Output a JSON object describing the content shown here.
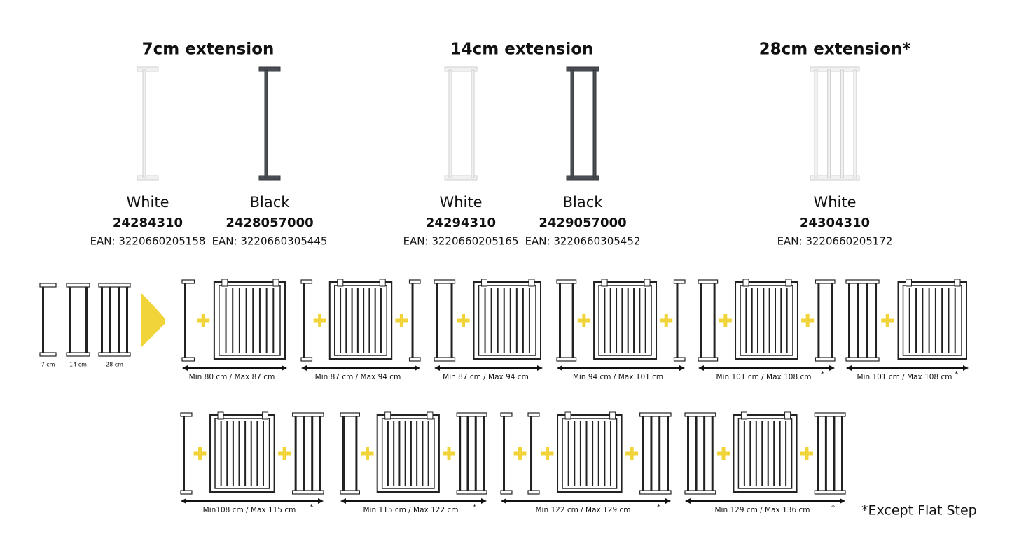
{
  "products": [
    {
      "title": "7cm extension",
      "variants": [
        {
          "color": "White",
          "code": "24284310",
          "ean": "EAN: 3220660205158"
        },
        {
          "color": "Black",
          "code": "2428057000",
          "ean": "EAN: 3220660305445"
        }
      ]
    },
    {
      "title": "14cm extension",
      "variants": [
        {
          "color": "White",
          "code": "24294310",
          "ean": "EAN: 3220660205165"
        },
        {
          "color": "Black",
          "code": "2429057000",
          "ean": "EAN: 3220660305452"
        }
      ]
    },
    {
      "title": "28cm extension*",
      "variants": [
        {
          "color": "White",
          "code": "24304310",
          "ean": "EAN: 3220660205172"
        }
      ]
    }
  ],
  "legend": [
    "7 cm",
    "14 cm",
    "28 cm"
  ],
  "configurations": [
    {
      "range": "Min 80 cm / Max 87 cm"
    },
    {
      "range": "Min 87 cm / Max 94 cm"
    },
    {
      "range": "Min 87 cm / Max 94 cm"
    },
    {
      "range": "Min 94 cm / Max 101 cm"
    },
    {
      "range": "Min 101 cm / Max 108 cm",
      "note": "*"
    },
    {
      "range": "Min 101 cm / Max 108 cm",
      "note": "*"
    },
    {
      "range": "Min108 cm / Max 115 cm",
      "note": "*"
    },
    {
      "range": "Min 115 cm / Max 122 cm",
      "note": "*"
    },
    {
      "range": "Min 122 cm / Max 129 cm",
      "note": "*"
    },
    {
      "range": "Min 129 cm / Max 136 cm",
      "note": "*"
    }
  ],
  "footnote": "*Except Flat Step"
}
